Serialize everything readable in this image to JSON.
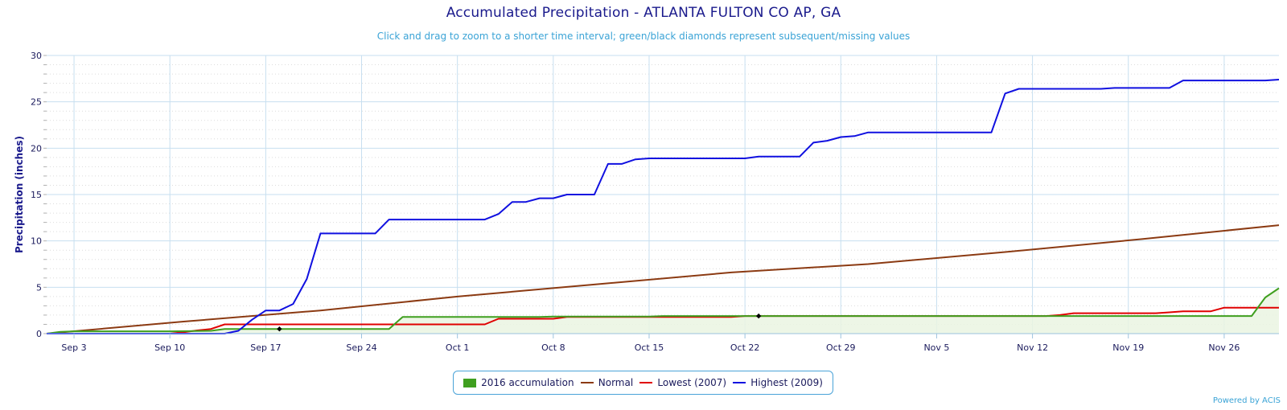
{
  "chart_data": {
    "type": "line",
    "title": "Accumulated Precipitation - ATLANTA FULTON CO AP, GA",
    "subtitle": "Click and drag to zoom to a shorter time interval; green/black diamonds represent subsequent/missing values",
    "ylabel": "Precipitation (inches)",
    "xlabel": "",
    "ylim": [
      0,
      30
    ],
    "yticks": [
      0,
      5,
      10,
      15,
      20,
      25,
      30
    ],
    "x_start": "Sep 1",
    "x_end": "Nov 30",
    "xticks": [
      {
        "label": "Sep 3",
        "day": 2
      },
      {
        "label": "Sep 10",
        "day": 9
      },
      {
        "label": "Sep 17",
        "day": 16
      },
      {
        "label": "Sep 24",
        "day": 23
      },
      {
        "label": "Oct 1",
        "day": 30
      },
      {
        "label": "Oct 8",
        "day": 37
      },
      {
        "label": "Oct 15",
        "day": 44
      },
      {
        "label": "Oct 22",
        "day": 51
      },
      {
        "label": "Oct 29",
        "day": 58
      },
      {
        "label": "Nov 5",
        "day": 65
      },
      {
        "label": "Nov 12",
        "day": 72
      },
      {
        "label": "Nov 19",
        "day": 79
      },
      {
        "label": "Nov 26",
        "day": 86
      }
    ],
    "grid": true,
    "legend_position": "bottom-center",
    "series": [
      {
        "name": "2016 accumulation",
        "color": "#3f9f1f",
        "fill": "#eaf4e2",
        "points": [
          [
            0,
            0
          ],
          [
            1,
            0.2
          ],
          [
            2,
            0.25
          ],
          [
            9,
            0.25
          ],
          [
            12,
            0.3
          ],
          [
            13,
            0.5
          ],
          [
            25,
            0.5
          ],
          [
            26,
            1.8
          ],
          [
            36,
            1.8
          ],
          [
            37,
            1.85
          ],
          [
            44,
            1.85
          ],
          [
            45,
            1.9
          ],
          [
            88,
            1.9
          ],
          [
            89,
            3.9
          ],
          [
            90,
            4.9
          ]
        ]
      },
      {
        "name": "Normal",
        "color": "#8b3a12",
        "points": [
          [
            0,
            0
          ],
          [
            10,
            1.3
          ],
          [
            20,
            2.5
          ],
          [
            30,
            4.0
          ],
          [
            40,
            5.3
          ],
          [
            50,
            6.6
          ],
          [
            60,
            7.5
          ],
          [
            70,
            8.8
          ],
          [
            80,
            10.2
          ],
          [
            90,
            11.7
          ]
        ]
      },
      {
        "name": "Lowest (2007)",
        "color": "#e00000",
        "points": [
          [
            0,
            0
          ],
          [
            9,
            0
          ],
          [
            10,
            0.15
          ],
          [
            11,
            0.35
          ],
          [
            12,
            0.5
          ],
          [
            13,
            1.0
          ],
          [
            32,
            1.0
          ],
          [
            33,
            1.6
          ],
          [
            37,
            1.6
          ],
          [
            38,
            1.8
          ],
          [
            50,
            1.8
          ],
          [
            51,
            1.9
          ],
          [
            73,
            1.9
          ],
          [
            74,
            2.0
          ],
          [
            75,
            2.2
          ],
          [
            81,
            2.2
          ],
          [
            82,
            2.3
          ],
          [
            83,
            2.4
          ],
          [
            85,
            2.4
          ],
          [
            86,
            2.8
          ],
          [
            90,
            2.8
          ]
        ]
      },
      {
        "name": "Highest (2009)",
        "color": "#1010e0",
        "points": [
          [
            0,
            0
          ],
          [
            13,
            0
          ],
          [
            14,
            0.3
          ],
          [
            15,
            1.5
          ],
          [
            16,
            2.5
          ],
          [
            17,
            2.5
          ],
          [
            18,
            3.2
          ],
          [
            19,
            5.9
          ],
          [
            20,
            10.8
          ],
          [
            24,
            10.8
          ],
          [
            25,
            12.3
          ],
          [
            32,
            12.3
          ],
          [
            33,
            12.9
          ],
          [
            34,
            14.2
          ],
          [
            35,
            14.2
          ],
          [
            36,
            14.6
          ],
          [
            37,
            14.6
          ],
          [
            38,
            15.0
          ],
          [
            40,
            15.0
          ],
          [
            41,
            18.3
          ],
          [
            42,
            18.3
          ],
          [
            43,
            18.8
          ],
          [
            44,
            18.9
          ],
          [
            51,
            18.9
          ],
          [
            52,
            19.1
          ],
          [
            55,
            19.1
          ],
          [
            56,
            20.6
          ],
          [
            57,
            20.8
          ],
          [
            58,
            21.2
          ],
          [
            59,
            21.3
          ],
          [
            60,
            21.7
          ],
          [
            69,
            21.7
          ],
          [
            70,
            25.9
          ],
          [
            71,
            26.4
          ],
          [
            77,
            26.4
          ],
          [
            78,
            26.5
          ],
          [
            82,
            26.5
          ],
          [
            83,
            27.3
          ],
          [
            89,
            27.3
          ],
          [
            90,
            27.4
          ]
        ]
      }
    ],
    "markers": [
      {
        "day": 17,
        "value": 0.5,
        "meaning": "missing"
      },
      {
        "day": 52,
        "value": 1.9,
        "meaning": "missing"
      }
    ]
  },
  "legend": {
    "items": [
      "2016 accumulation",
      "Normal",
      "Lowest (2007)",
      "Highest (2009)"
    ]
  },
  "credit": "Powered by ACIS"
}
